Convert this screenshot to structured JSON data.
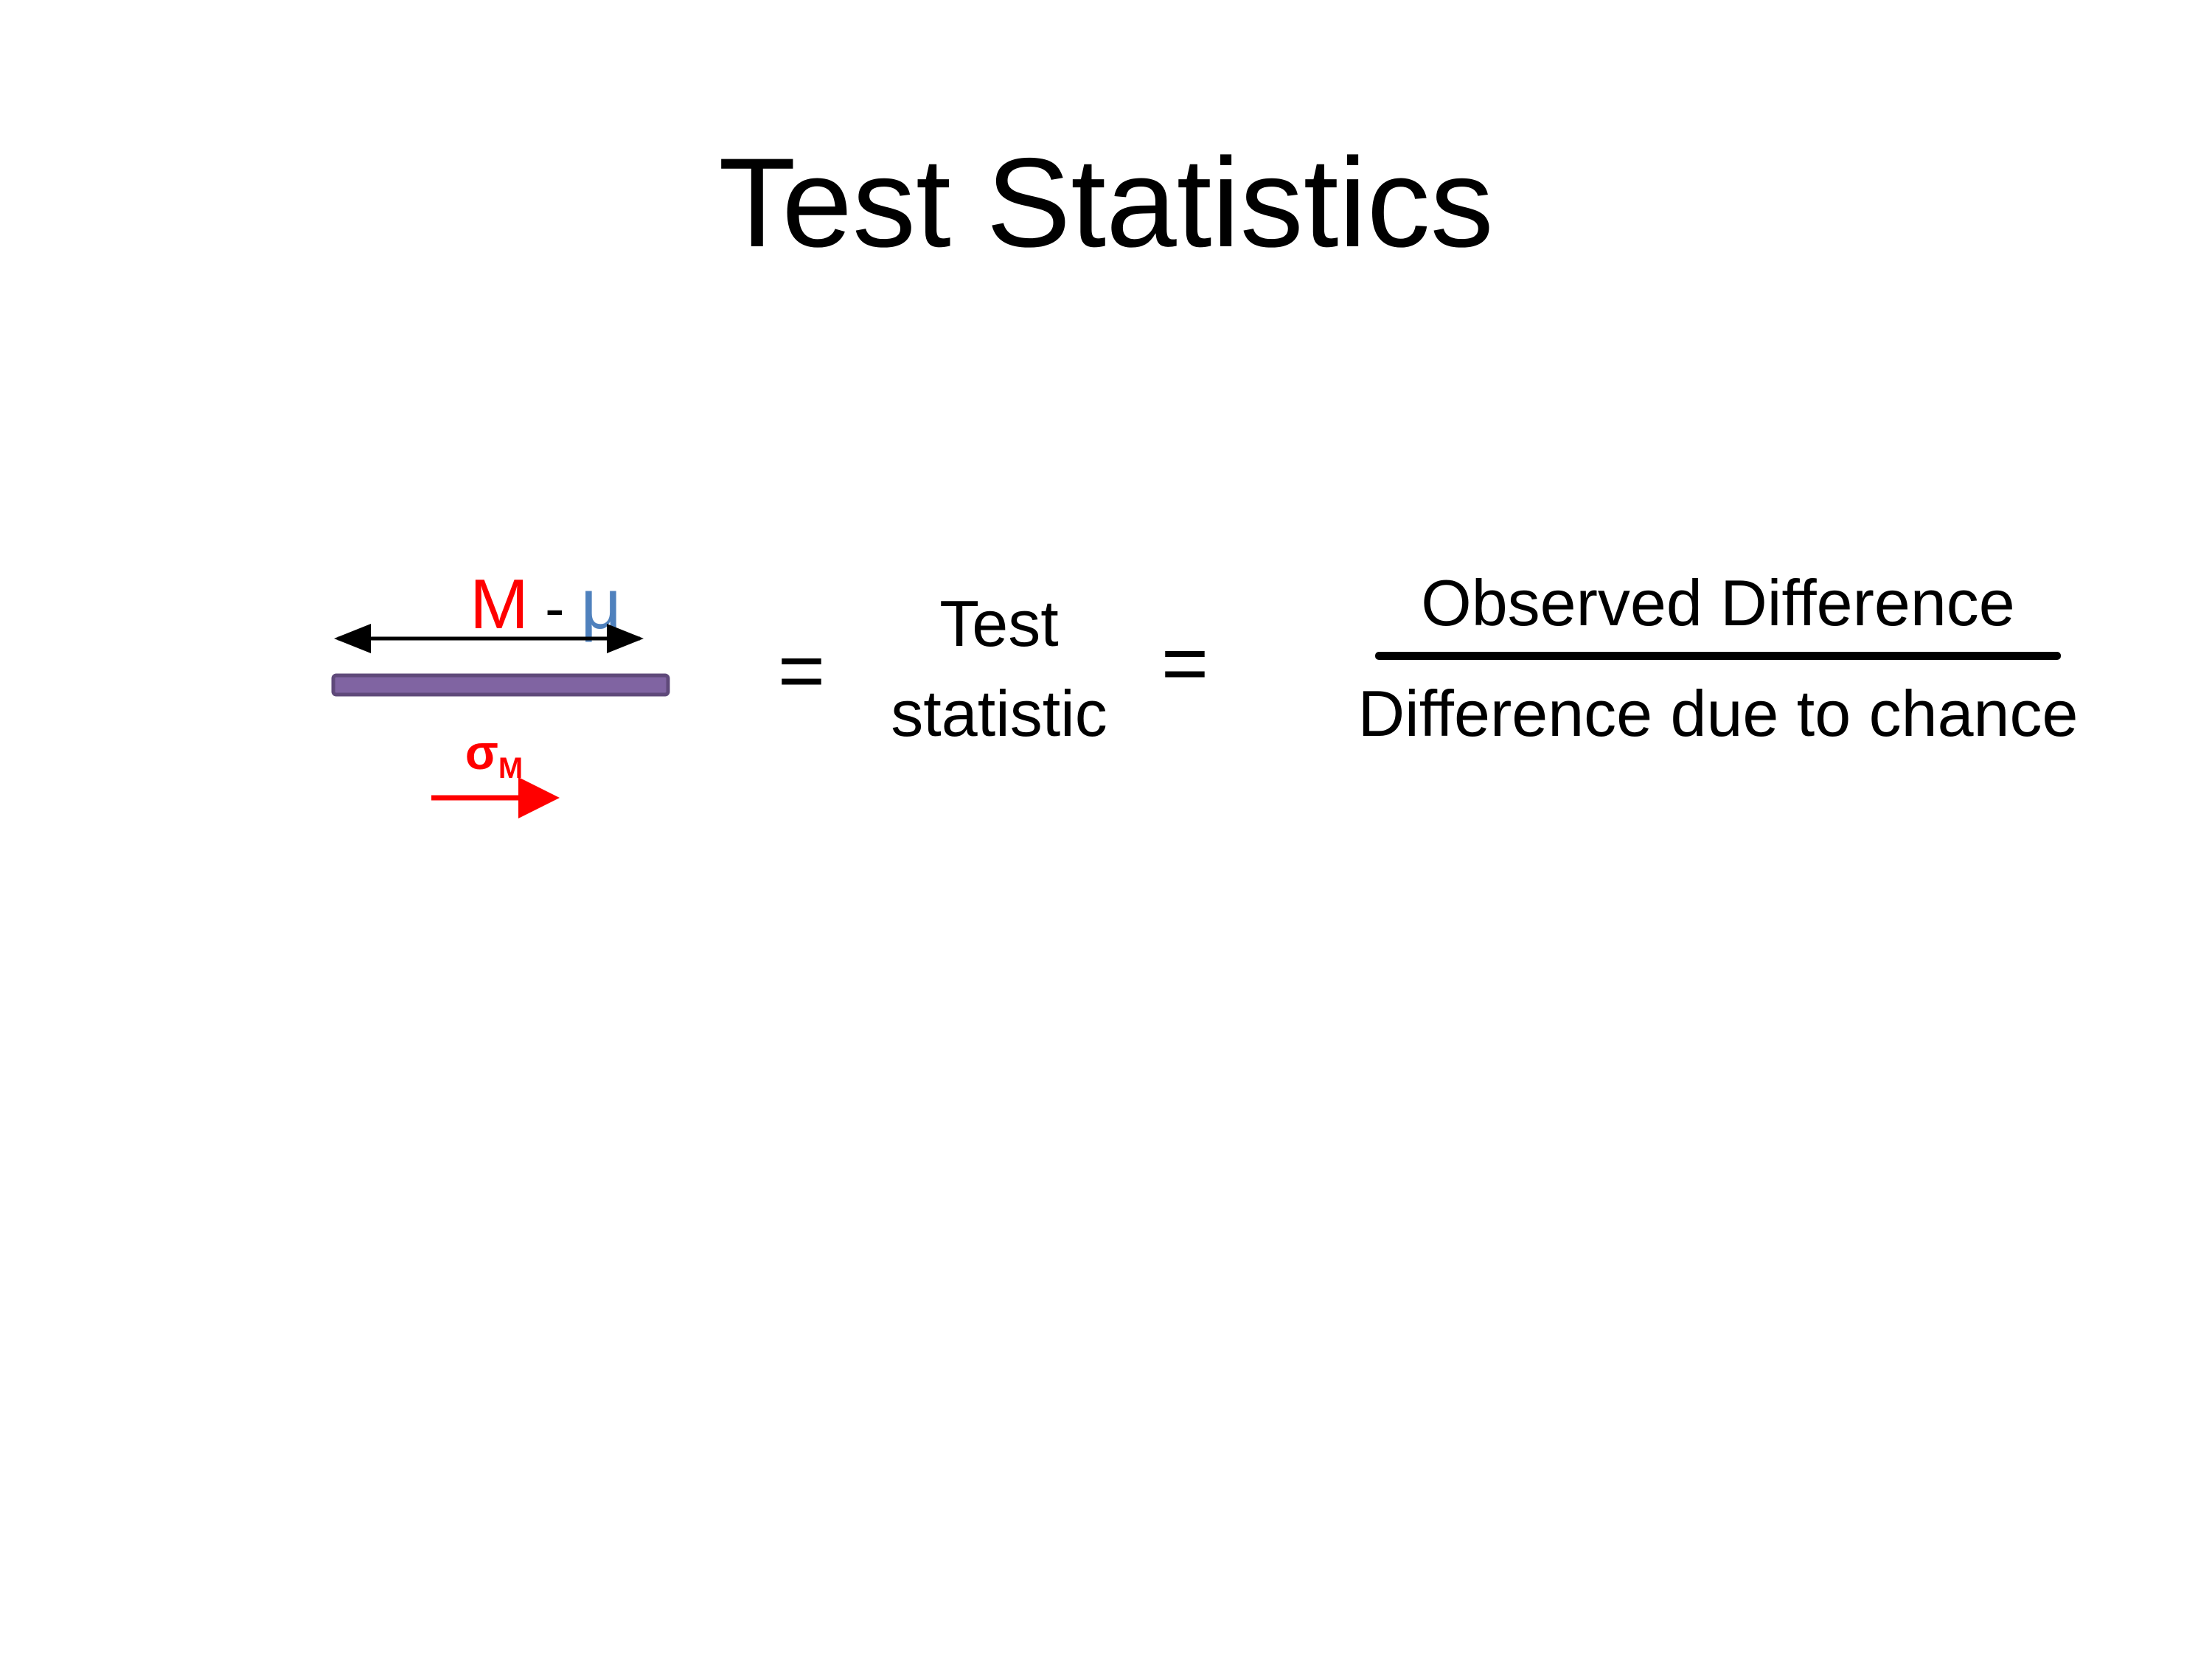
{
  "title": "Test Statistics",
  "diagram": {
    "expression": {
      "m": "M",
      "sep": "-",
      "mu": "μ"
    },
    "sigma": {
      "base": "σ",
      "sub": "M"
    },
    "equals_1": "=",
    "test_statistic": {
      "line1": "Test",
      "line2": "statistic"
    },
    "equals_2": "=",
    "fraction": {
      "numerator": "Observed Difference",
      "denominator": "Difference due to chance"
    }
  },
  "colors": {
    "m": "#ff0000",
    "mu": "#4f81bd",
    "bar_fill": "#8064a2",
    "bar_border": "#5f497a",
    "sigma_arrow": "#ff0000",
    "diff_arrow": "#000000"
  }
}
